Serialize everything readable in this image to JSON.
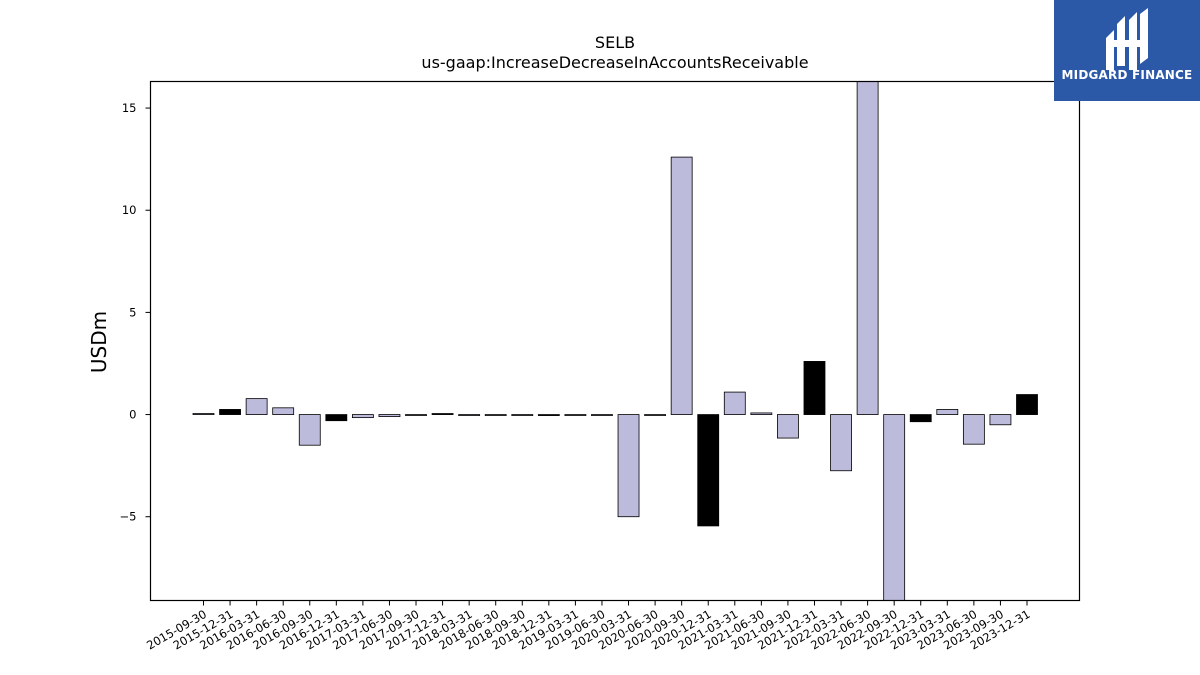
{
  "chart_data": {
    "type": "bar",
    "title": "SELB",
    "subtitle": "us-gaap:IncreaseDecreaseInAccountsReceivable",
    "xlabel": "",
    "ylabel": "USDm",
    "ylim": [
      -9.1,
      16.3
    ],
    "yticks": [
      -5,
      0,
      5,
      10,
      15
    ],
    "ytick_labels": [
      "−5",
      "0",
      "5",
      "10",
      "15"
    ],
    "grid": false,
    "colors": {
      "quarter": "#bdbbdb",
      "year_end": "#000000",
      "edge": "#000000"
    },
    "categories": [
      "2015-09-30",
      "2015-12-31",
      "2016-03-31",
      "2016-06-30",
      "2016-09-30",
      "2016-12-31",
      "2017-03-31",
      "2017-06-30",
      "2017-09-30",
      "2017-12-31",
      "2018-03-31",
      "2018-06-30",
      "2018-09-30",
      "2018-12-31",
      "2019-03-31",
      "2019-06-30",
      "2020-03-31",
      "2020-06-30",
      "2020-09-30",
      "2020-12-31",
      "2021-03-31",
      "2021-06-30",
      "2021-09-30",
      "2021-12-31",
      "2022-03-31",
      "2022-06-30",
      "2022-09-30",
      "2022-12-31",
      "2023-03-31",
      "2023-06-30",
      "2023-09-30",
      "2023-12-31"
    ],
    "values": [
      0.05,
      0.25,
      0.78,
      0.33,
      -1.5,
      -0.3,
      -0.15,
      -0.1,
      0.0,
      0.05,
      0.0,
      0.0,
      0.0,
      0.0,
      0.0,
      0.0,
      -5.0,
      0.0,
      12.6,
      -5.45,
      1.1,
      0.08,
      -1.15,
      2.6,
      -2.75,
      16.3,
      -9.1,
      -0.35,
      0.25,
      -1.45,
      -0.5,
      0.98
    ]
  },
  "logo": {
    "text": "MIDGARD FINANCE",
    "icon": "midgard-logo-icon"
  }
}
